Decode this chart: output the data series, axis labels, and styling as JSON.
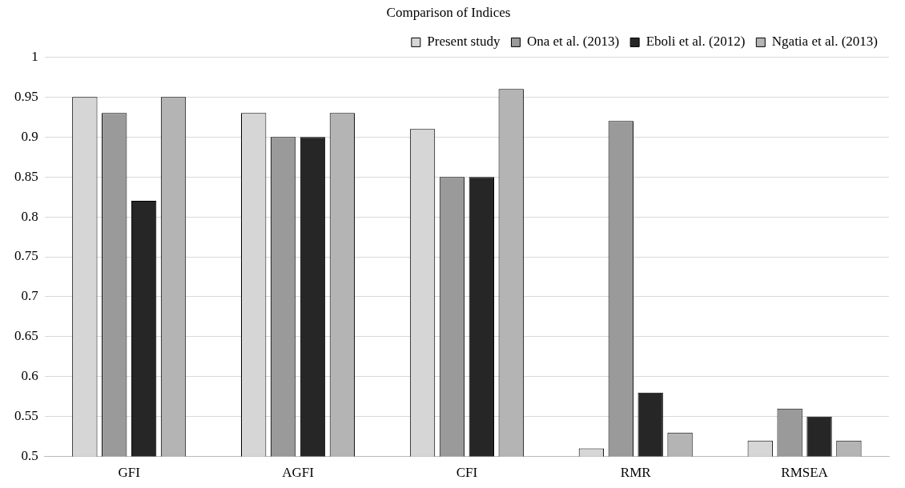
{
  "chart_data": {
    "type": "bar",
    "title": "Comparison of Indices",
    "categories": [
      "GFI",
      "AGFI",
      "CFI",
      "RMR",
      "RMSEA"
    ],
    "series": [
      {
        "name": "Present study",
        "color": "#d6d6d6",
        "values": [
          0.95,
          0.93,
          0.91,
          0.51,
          0.52
        ]
      },
      {
        "name": "Ona et al. (2013)",
        "color": "#9a9a9a",
        "values": [
          0.93,
          0.9,
          0.85,
          0.92,
          0.56
        ]
      },
      {
        "name": "Eboli et al. (2012)",
        "color": "#262626",
        "values": [
          0.82,
          0.9,
          0.85,
          0.58,
          0.55
        ]
      },
      {
        "name": "Ngatia et al. (2013)",
        "color": "#b4b4b4",
        "values": [
          0.95,
          0.93,
          0.96,
          0.53,
          0.52
        ]
      }
    ],
    "ylim": [
      0.5,
      1
    ],
    "yticks": [
      0.5,
      0.55,
      0.6,
      0.65,
      0.7,
      0.75,
      0.8,
      0.85,
      0.9,
      0.95,
      1
    ],
    "grid": "y",
    "legend": "top"
  }
}
